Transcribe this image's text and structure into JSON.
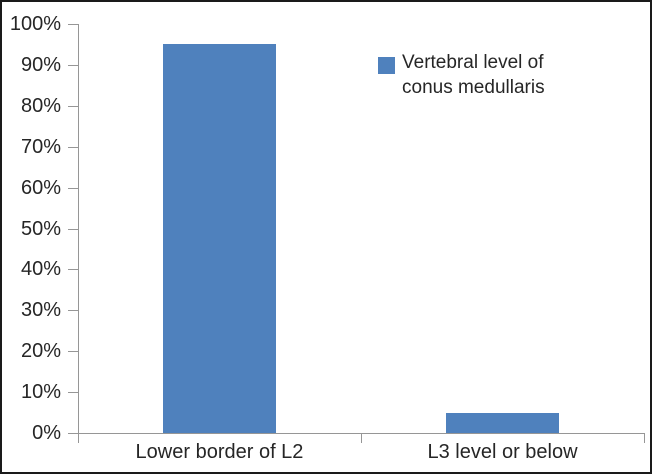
{
  "figure": {
    "background": "#ffffff",
    "border_color": "#1a1a1a"
  },
  "chart_data": {
    "type": "bar",
    "title": "",
    "categories": [
      "Lower border of L2",
      "L3 level or below"
    ],
    "values": [
      95,
      5
    ],
    "unit": "%",
    "xlabel": "",
    "ylabel": "",
    "ylim": [
      0,
      100
    ],
    "ytick_step": 10,
    "ytick_labels": [
      "0%",
      "10%",
      "20%",
      "30%",
      "40%",
      "50%",
      "60%",
      "70%",
      "80%",
      "90%",
      "100%"
    ],
    "grid": false,
    "legend": {
      "label": "Vertebral level of conus medullaris",
      "position": "top-right"
    },
    "colors": {
      "bar": "#4F81BD",
      "axis": "#969696",
      "text": "#262626"
    }
  }
}
